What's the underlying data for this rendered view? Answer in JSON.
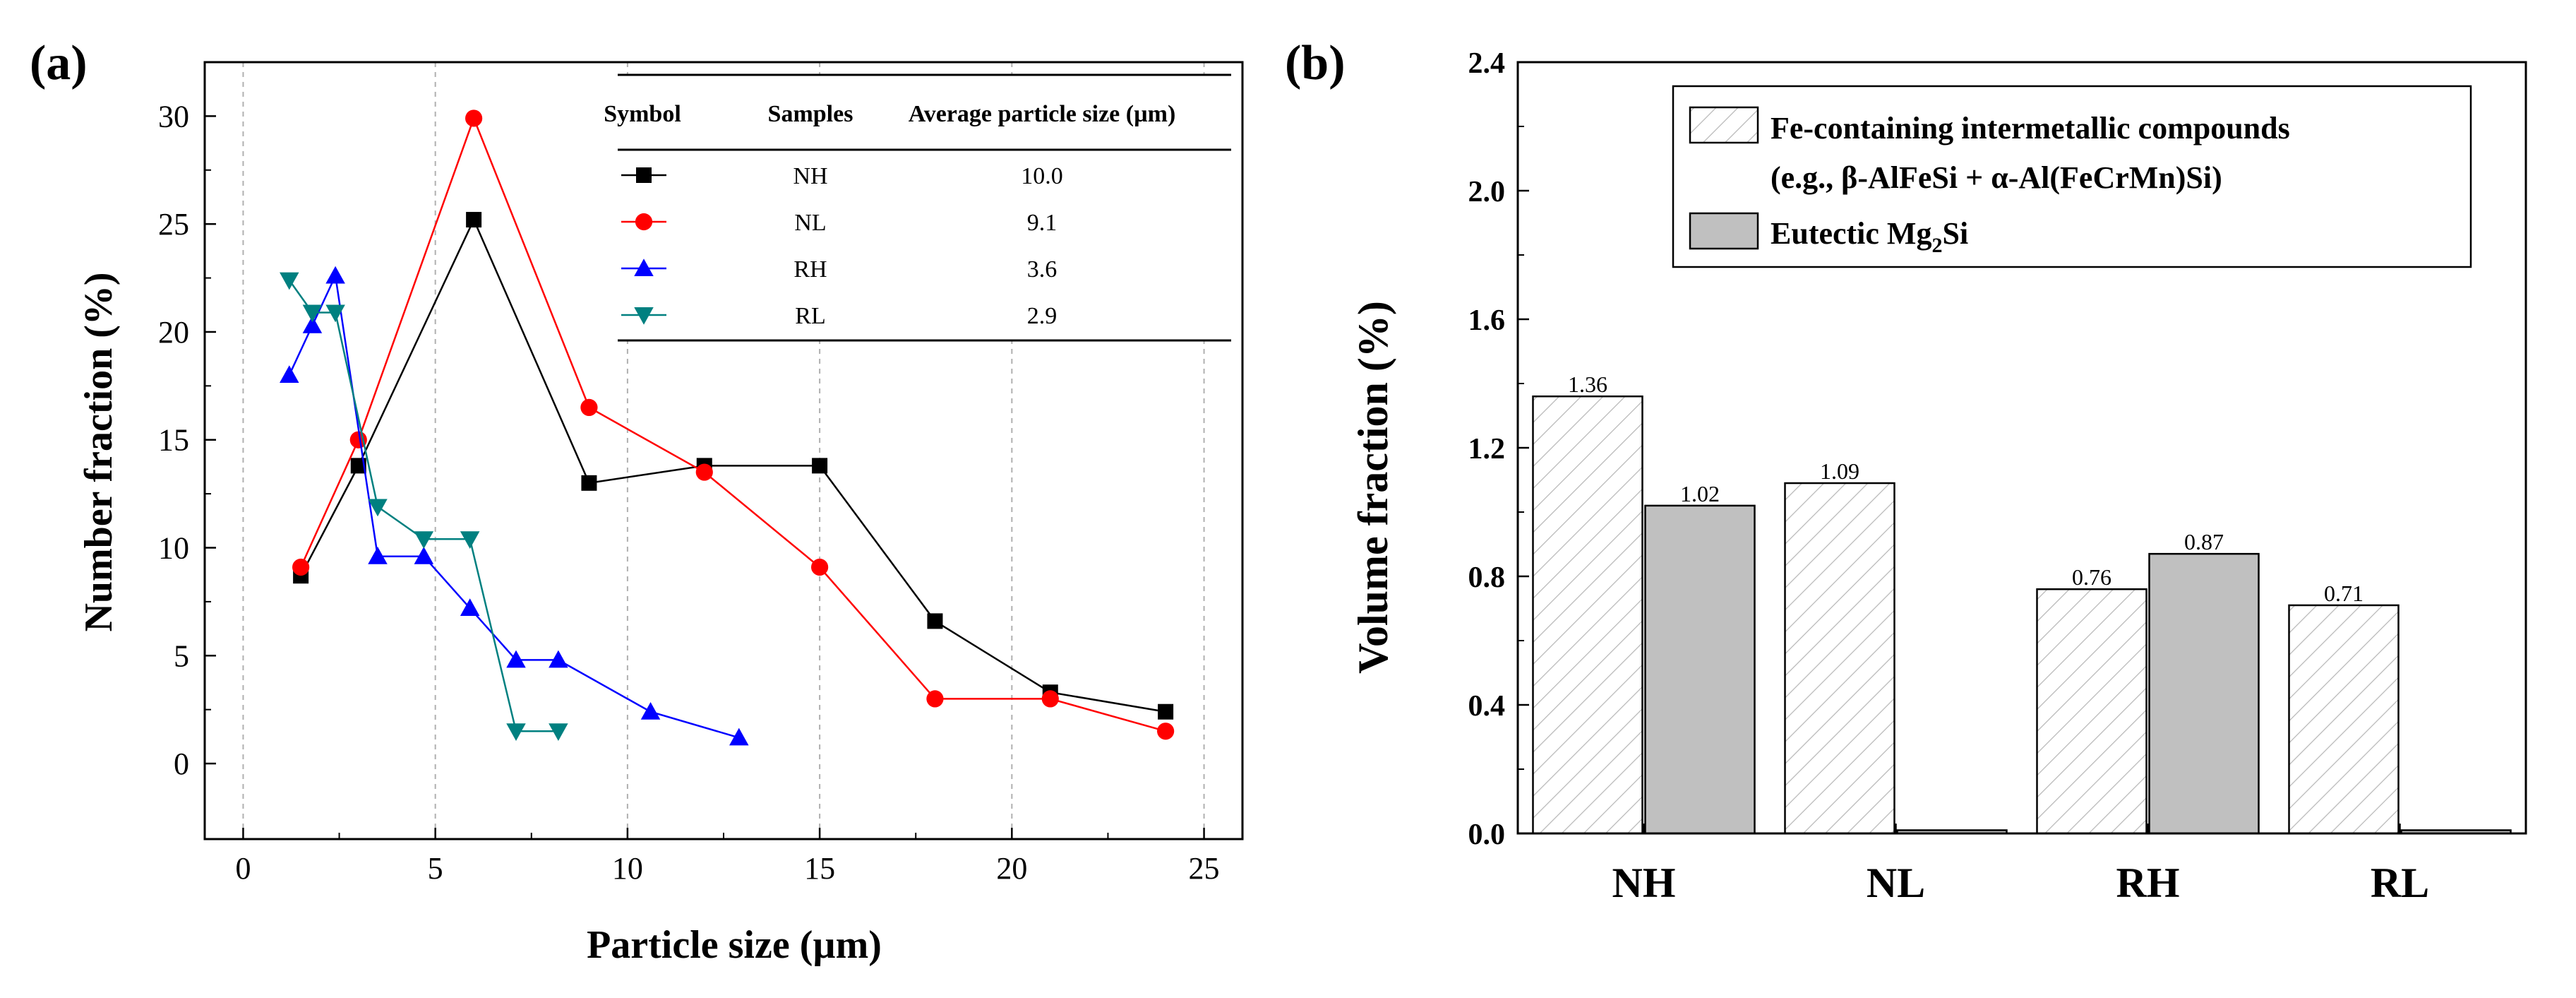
{
  "panels": {
    "a_label": "(a)",
    "b_label": "(b)"
  },
  "chart_data": [
    {
      "id": "a",
      "type": "line",
      "title": "",
      "xlabel": "Particle size (µm)",
      "ylabel": "Number fraction (%)",
      "xlim": [
        -1,
        26
      ],
      "ylim": [
        -3.5,
        32.5
      ],
      "xticks": [
        0,
        5,
        10,
        15,
        20,
        25
      ],
      "yticks": [
        0,
        5,
        10,
        15,
        20,
        25,
        30
      ],
      "grid": "vertical dashed at x = 0, 5, 10, 15, 20, 25",
      "legend_table": {
        "headers": [
          "Symbol",
          "Samples",
          "Average particle size (µm)"
        ],
        "rows": [
          {
            "sample": "NH",
            "avg": "10.0"
          },
          {
            "sample": "NL",
            "avg": "9.1"
          },
          {
            "sample": "RH",
            "avg": "3.6"
          },
          {
            "sample": "RL",
            "avg": "2.9"
          }
        ]
      },
      "series": [
        {
          "name": "NH",
          "color": "#000000",
          "marker": "square",
          "x": [
            1.5,
            3,
            6,
            9,
            12,
            15,
            18,
            21,
            24
          ],
          "y": [
            8.7,
            13.8,
            25.2,
            13.0,
            13.8,
            13.8,
            6.6,
            3.3,
            2.4
          ]
        },
        {
          "name": "NL",
          "color": "#ff0000",
          "marker": "circle",
          "x": [
            1.5,
            3,
            6,
            9,
            12,
            15,
            18,
            21,
            24
          ],
          "y": [
            9.1,
            15.0,
            29.9,
            16.5,
            13.5,
            9.1,
            3.0,
            3.0,
            1.5
          ]
        },
        {
          "name": "RH",
          "color": "#0000ff",
          "marker": "triangle-up",
          "x": [
            1.2,
            1.8,
            2.4,
            3.5,
            4.7,
            5.9,
            7.1,
            8.2,
            10.6,
            12.9
          ],
          "y": [
            18.0,
            20.3,
            22.6,
            9.6,
            9.6,
            7.2,
            4.8,
            4.8,
            2.4,
            1.2
          ]
        },
        {
          "name": "RL",
          "color": "#008080",
          "marker": "triangle-down",
          "x": [
            1.2,
            1.8,
            2.4,
            3.5,
            4.7,
            5.9,
            7.1,
            8.2
          ],
          "y": [
            22.4,
            20.9,
            20.9,
            11.9,
            10.4,
            10.4,
            1.5,
            1.5
          ]
        }
      ]
    },
    {
      "id": "b",
      "type": "bar",
      "title": "",
      "xlabel": "",
      "ylabel": "Volume fraction (%)",
      "ylim": [
        0,
        2.4
      ],
      "yticks": [
        "0.0",
        "0.4",
        "0.8",
        "1.2",
        "1.6",
        "2.0",
        "2.4"
      ],
      "categories": [
        "NH",
        "NL",
        "RH",
        "RL"
      ],
      "legend": {
        "fe_line1": "Fe-containing intermetallic compounds",
        "fe_line2": "(e.g., β-AlFeSi + α-Al(FeCrMn)Si)",
        "mg_prefix": "Eutectic Mg",
        "mg_sub": "2",
        "mg_suffix": "Si"
      },
      "series": [
        {
          "name": "Fe-containing intermetallic compounds",
          "style": "hatched",
          "color": "#bfbfbf",
          "values": [
            1.36,
            1.09,
            0.76,
            0.71
          ],
          "labels": [
            "1.36",
            "1.09",
            "0.76",
            "0.71"
          ]
        },
        {
          "name": "Eutectic Mg2Si",
          "style": "solid",
          "color": "#c0c0c0",
          "values": [
            1.02,
            0.01,
            0.87,
            0.01
          ],
          "labels": [
            "1.02",
            "",
            "0.87",
            ""
          ]
        }
      ]
    }
  ]
}
